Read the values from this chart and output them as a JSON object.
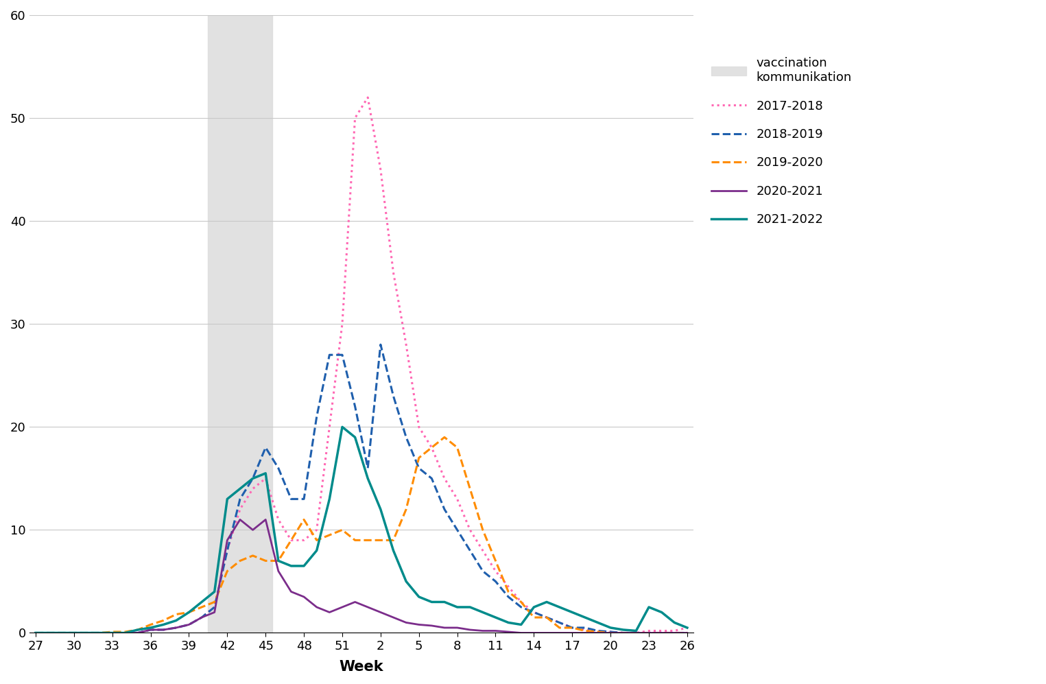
{
  "title": "",
  "xlabel": "Week",
  "ylabel": "",
  "ylim": [
    0,
    60
  ],
  "yticks": [
    0,
    10,
    20,
    30,
    40,
    50,
    60
  ],
  "xtick_labels": [
    "27",
    "30",
    "33",
    "36",
    "39",
    "42",
    "45",
    "48",
    "51",
    "2",
    "5",
    "8",
    "11",
    "14",
    "17",
    "20",
    "23",
    "26"
  ],
  "background_color": "#ffffff",
  "shaded_weeks": [
    41,
    42,
    43,
    44,
    45
  ],
  "series": {
    "2017-2018": {
      "color": "#FF69B4",
      "linestyle": "dotted",
      "linewidth": 2.2,
      "weeks": [
        27,
        28,
        29,
        30,
        31,
        32,
        33,
        34,
        35,
        36,
        37,
        38,
        39,
        40,
        41,
        42,
        43,
        44,
        45,
        46,
        47,
        48,
        49,
        50,
        51,
        52,
        1,
        2,
        3,
        4,
        5,
        6,
        7,
        8,
        9,
        10,
        11,
        12,
        13,
        14,
        15,
        16,
        17,
        18,
        19,
        20,
        21,
        22,
        23,
        24,
        25,
        26
      ],
      "values": [
        0,
        0,
        0,
        0,
        0,
        0,
        0,
        0,
        0,
        0.3,
        0.3,
        0.5,
        0.8,
        1.5,
        2.5,
        8,
        12,
        14,
        15,
        11,
        9,
        9,
        10,
        20,
        30,
        50,
        52,
        45,
        35,
        28,
        20,
        18,
        15,
        13,
        10,
        8,
        6,
        4.5,
        3,
        2,
        1.5,
        1,
        0.5,
        0.3,
        0.2,
        0.1,
        0,
        0,
        0.2,
        0.2,
        0.2,
        0.5
      ]
    },
    "2018-2019": {
      "color": "#1F5FAD",
      "linestyle": "dashed",
      "linewidth": 2.2,
      "weeks": [
        27,
        28,
        29,
        30,
        31,
        32,
        33,
        34,
        35,
        36,
        37,
        38,
        39,
        40,
        41,
        42,
        43,
        44,
        45,
        46,
        47,
        48,
        49,
        50,
        51,
        52,
        1,
        2,
        3,
        4,
        5,
        6,
        7,
        8,
        9,
        10,
        11,
        12,
        13,
        14,
        15,
        16,
        17,
        18,
        19,
        20,
        21,
        22,
        23,
        24,
        25,
        26
      ],
      "values": [
        0,
        0,
        0,
        0,
        0,
        0,
        0,
        0,
        0,
        0.3,
        0.3,
        0.5,
        0.8,
        1.5,
        2.5,
        8,
        13,
        15,
        18,
        16,
        13,
        13,
        21,
        27,
        27,
        22,
        16,
        28,
        23,
        19,
        16,
        15,
        12,
        10,
        8,
        6,
        5,
        3.5,
        2.5,
        2,
        1.5,
        1,
        0.5,
        0.5,
        0.2,
        0.1,
        0,
        0,
        0,
        0,
        0,
        0
      ]
    },
    "2019-2020": {
      "color": "#FF8C00",
      "linestyle": "dashed",
      "linewidth": 2.2,
      "weeks": [
        27,
        28,
        29,
        30,
        31,
        32,
        33,
        34,
        35,
        36,
        37,
        38,
        39,
        40,
        41,
        42,
        43,
        44,
        45,
        46,
        47,
        48,
        49,
        50,
        51,
        52,
        1,
        2,
        3,
        4,
        5,
        6,
        7,
        8,
        9,
        10,
        11,
        12,
        13,
        14,
        15,
        16,
        17,
        18,
        19,
        20,
        21,
        22,
        23,
        24,
        25,
        26
      ],
      "values": [
        0,
        0,
        0,
        0,
        0,
        0,
        0.1,
        0.1,
        0.3,
        0.8,
        1.2,
        1.8,
        2,
        2.5,
        3,
        6,
        7,
        7.5,
        7,
        7,
        9,
        11,
        9,
        9.5,
        10,
        9,
        9,
        9,
        9,
        12,
        17,
        18,
        19,
        18,
        14,
        10,
        7,
        4,
        3,
        1.5,
        1.5,
        0.5,
        0.5,
        0.2,
        0.1,
        0,
        0,
        0,
        0,
        0,
        0,
        0
      ]
    },
    "2020-2021": {
      "color": "#7B2D8B",
      "linestyle": "solid",
      "linewidth": 2.0,
      "weeks": [
        27,
        28,
        29,
        30,
        31,
        32,
        33,
        34,
        35,
        36,
        37,
        38,
        39,
        40,
        41,
        42,
        43,
        44,
        45,
        46,
        47,
        48,
        49,
        50,
        51,
        52,
        1,
        2,
        3,
        4,
        5,
        6,
        7,
        8,
        9,
        10,
        11,
        12,
        13,
        14,
        15,
        16,
        17,
        18,
        19,
        20,
        21,
        22,
        23,
        24,
        25,
        26
      ],
      "values": [
        0,
        0,
        0,
        0,
        0,
        0,
        0,
        0,
        0,
        0.3,
        0.3,
        0.5,
        0.8,
        1.5,
        2,
        9,
        11,
        10,
        11,
        6,
        4,
        3.5,
        2.5,
        2,
        2.5,
        3,
        2.5,
        2,
        1.5,
        1,
        0.8,
        0.7,
        0.5,
        0.5,
        0.3,
        0.2,
        0.2,
        0.1,
        0,
        0,
        0,
        0,
        0,
        0,
        0,
        0,
        0,
        0,
        0,
        0,
        0,
        0
      ]
    },
    "2021-2022": {
      "color": "#008B8B",
      "linestyle": "solid",
      "linewidth": 2.5,
      "weeks": [
        27,
        28,
        29,
        30,
        31,
        32,
        33,
        34,
        35,
        36,
        37,
        38,
        39,
        40,
        41,
        42,
        43,
        44,
        45,
        46,
        47,
        48,
        49,
        50,
        51,
        52,
        1,
        2,
        3,
        4,
        5,
        6,
        7,
        8,
        9,
        10,
        11,
        12,
        13,
        14,
        15,
        16,
        17,
        18,
        19,
        20,
        21,
        22,
        23,
        24,
        25,
        26
      ],
      "values": [
        0,
        0,
        0,
        0,
        0,
        0,
        0,
        0,
        0.3,
        0.5,
        0.8,
        1.2,
        2,
        3,
        4,
        13,
        14,
        15,
        15.5,
        7,
        6.5,
        6.5,
        8,
        13,
        20,
        19,
        15,
        12,
        8,
        5,
        3.5,
        3,
        3,
        2.5,
        2.5,
        2,
        1.5,
        1,
        0.8,
        2.5,
        3,
        2.5,
        2,
        1.5,
        1,
        0.5,
        0.3,
        0.2,
        2.5,
        2,
        1,
        0.5
      ]
    }
  }
}
